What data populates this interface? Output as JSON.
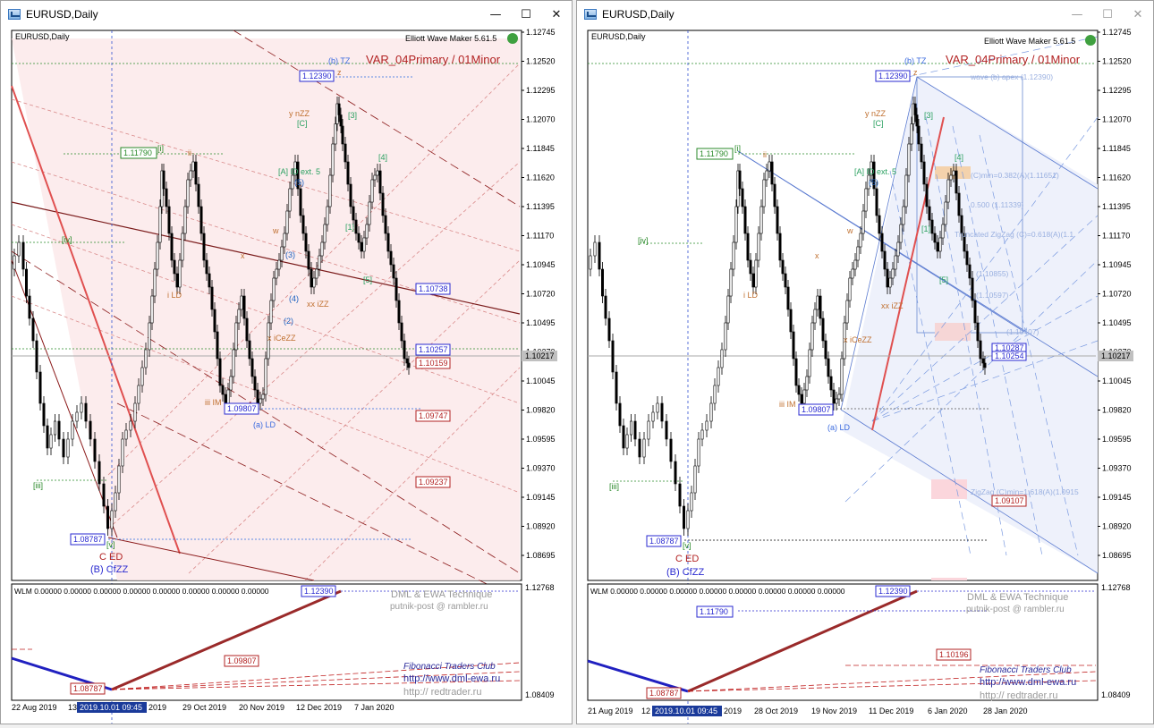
{
  "left": {
    "window_title": "EURUSD,Daily",
    "chart_label": "EURUSD,Daily",
    "indicator_name": "Elliott Wave Maker 5.61.5",
    "variant_label": "VAR_04Primary / 01Minor",
    "price_labels": [
      "1.12745",
      "1.12520",
      "1.12295",
      "1.12070",
      "1.11845",
      "1.11620",
      "1.11395",
      "1.11170",
      "1.10945",
      "1.10720",
      "1.10495",
      "1.10270",
      "1.10045",
      "1.09820",
      "1.09595",
      "1.09370",
      "1.09145",
      "1.08920",
      "1.08695"
    ],
    "current_price": "1.10217",
    "level_boxes": {
      "top": "1.12390",
      "ii": "1.11790",
      "b1": "1.10738",
      "b2": "1.10257",
      "b3": "1.10159",
      "b4": "1.09807",
      "b5": "1.09747",
      "b6": "1.09237",
      "low": "1.08787"
    },
    "wave_labels": {
      "btz": "(b) TZ",
      "z": "z",
      "ynzz": "y nZZ",
      "c1": "[C]",
      "a_id": "[A] ID ext. 5",
      "w5": "(5)",
      "i_br": "[i]",
      "ii": "ii",
      "iv": "[iv]",
      "iii": "[iii]",
      "v": "[v]",
      "ild": "i LD",
      "w": "w",
      "x": "x",
      "xxizz": "xx iZZ",
      "xiezz": "x iCeZZ",
      "iiim": "iii IM",
      "ald": "(a) LD",
      "ced": "C ED",
      "bcfzz": "(B) CfZZ",
      "n1": "[1]",
      "n4": "[4]",
      "n5": "[5]",
      "n3": "[3]",
      "n2": "(2)",
      "n4b": "(4)",
      "n3b": "(3)"
    },
    "sub_panel": {
      "label": "WLM 0.00000 0.00000 0.00000 0.00000 0.00000 0.00000 0.00000 0.00000",
      "prices": [
        "1.12768",
        "1.08409"
      ],
      "boxes": {
        "top": "1.12390",
        "mid": "1.09807",
        "low": "1.08787"
      },
      "brand1": "DML & EWA Technique",
      "brand2": "putnik-post @ rambler.ru",
      "brand3": "Fibonacci   Traders   Club",
      "url1": "http://www.dml-ewa.ru",
      "url2": "http:// redtrader.ru"
    },
    "dates": [
      "22 Aug 2019",
      "13",
      "2019.10.01 09:45",
      "2019",
      "29 Oct 2019",
      "20 Nov 2019",
      "12 Dec 2019",
      "7 Jan 2020"
    ]
  },
  "right": {
    "window_title": "EURUSD,Daily",
    "chart_label": "EURUSD,Daily",
    "indicator_name": "Elliott Wave Maker 5.61.5",
    "variant_label": "VAR_04Primary / 01Minor",
    "price_labels": [
      "1.12745",
      "1.12520",
      "1.12295",
      "1.12070",
      "1.11845",
      "1.11620",
      "1.11395",
      "1.11170",
      "1.10945",
      "1.10720",
      "1.10495",
      "1.10270",
      "1.10045",
      "1.09820",
      "1.09595",
      "1.09370",
      "1.09145",
      "1.08920",
      "1.08695"
    ],
    "current_price": "1.10217",
    "level_boxes": {
      "top": "1.12390",
      "ii": "1.11790",
      "b1": "1.10287",
      "b2": "1.10254",
      "b4": "1.09807",
      "b6": "1.09107",
      "low": "1.08787"
    },
    "fib_notes": [
      "wave (b) apex (1.12390)",
      "(C)min=0.382(A)(1.11651)",
      "0.500 (1.11339)",
      "Truncated ZigZag (C)=0.618(A)(1.1",
      "(1.10855)",
      "(1.10597)",
      "(1.10407)",
      "ZigZag (C)min=1.618(A)(1.0915"
    ],
    "wave_labels": {
      "btz": "(b) TZ",
      "z": "z",
      "ynzz": "y nZZ",
      "c1": "[C]",
      "a_id": "[A] ID ext. 5",
      "w5": "(5)",
      "i_br": "[i]",
      "ii": "ii",
      "iv": "[iv]",
      "iii": "[iii]",
      "v": "[v]",
      "ild": "i LD",
      "w": "w",
      "x": "x",
      "xxizz": "xx iZZ",
      "xiezz": "x iCeZZ",
      "iiim": "iii IM",
      "ald": "(a) LD",
      "ced": "C ED",
      "bcfzz": "(B) CfZZ",
      "n3": "[3]",
      "n4": "[4]",
      "n1": "[1]",
      "n5": "[5]"
    },
    "sub_panel": {
      "label": "WLM 0.00000 0.00000 0.00000 0.00000 0.00000 0.00000 0.00000 0.00000",
      "prices": [
        "1.12768",
        "1.08409"
      ],
      "boxes": {
        "top": "1.12390",
        "ii": "1.11790",
        "mid": "1.10196",
        "low": "1.08787"
      },
      "brand1": "DML & EWA Technique",
      "brand2": "putnik-post @ rambler.ru",
      "brand3": "Fibonacci   Traders   Club",
      "url1": "http://www.dml-ewa.ru",
      "url2": "http:// redtrader.ru"
    },
    "dates": [
      "21 Aug 2019",
      "12",
      "2019.10.01 09:45",
      "2019",
      "28 Oct 2019",
      "19 Nov 2019",
      "11 Dec 2019",
      "6 Jan 2020",
      "28 Jan 2020"
    ]
  },
  "window_buttons": {
    "minimize": "—",
    "maximize": "☐",
    "close": "✕"
  }
}
